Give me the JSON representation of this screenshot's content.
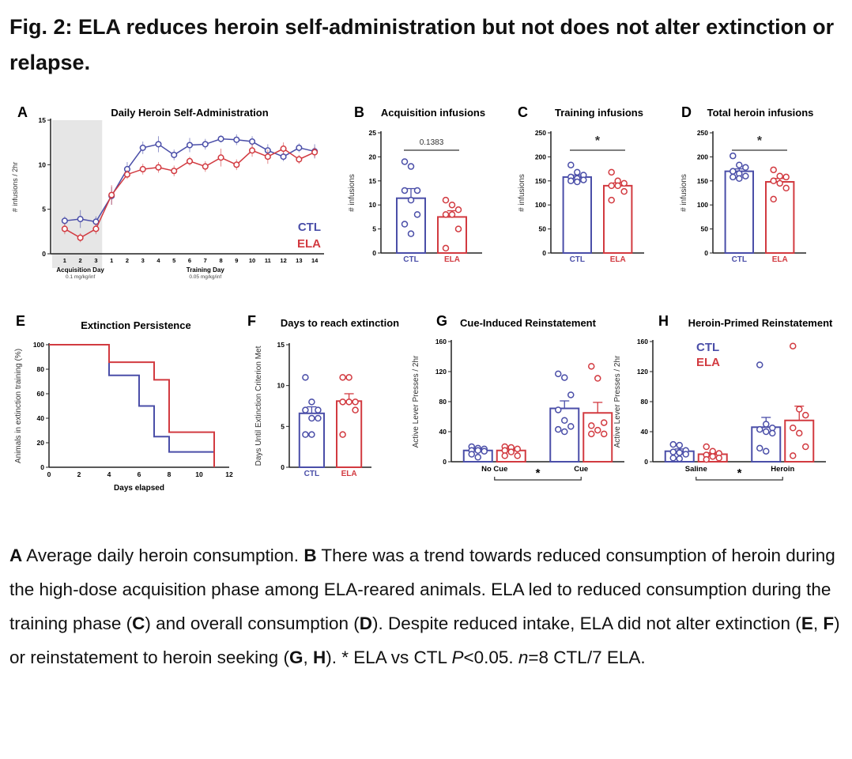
{
  "title": "Fig. 2: ELA reduces heroin self-administration but not does not alter extinction or relapse.",
  "colors": {
    "CTL": "#4a4ea8",
    "ELA": "#d23a40",
    "axis": "#222222"
  },
  "legend": {
    "ctl": "CTL",
    "ela": "ELA"
  },
  "caption": [
    {
      "b": true,
      "t": "A"
    },
    {
      "t": " Average daily heroin consumption. "
    },
    {
      "b": true,
      "t": "B"
    },
    {
      "t": " There was a trend towards reduced consumption of heroin during the high-dose acquisition phase among ELA-reared animals. ELA led to reduced consumption during the training phase ("
    },
    {
      "b": true,
      "t": "C"
    },
    {
      "t": ") and overall consumption ("
    },
    {
      "b": true,
      "t": "D"
    },
    {
      "t": "). Despite reduced intake, ELA did not alter extinction ("
    },
    {
      "b": true,
      "t": "E"
    },
    {
      "t": ", "
    },
    {
      "b": true,
      "t": "F"
    },
    {
      "t": ") or reinstatement to heroin seeking ("
    },
    {
      "b": true,
      "t": "G"
    },
    {
      "t": ", "
    },
    {
      "b": true,
      "t": "H"
    },
    {
      "t": "). * ELA vs CTL "
    },
    {
      "i": true,
      "t": "P"
    },
    {
      "t": "<0.05. "
    },
    {
      "i": true,
      "t": "n"
    },
    {
      "t": "=8 CTL/7 ELA."
    }
  ],
  "chart_data": [
    {
      "id": "A",
      "letter": "A",
      "type": "line",
      "title": "Daily Heroin Self-Administration",
      "ylabel": "# infusions / 2hr",
      "ylim": [
        0,
        15
      ],
      "yticks": [
        0,
        5,
        10,
        15
      ],
      "categories": [
        "1",
        "2",
        "3",
        "1",
        "2",
        "3",
        "4",
        "5",
        "6",
        "7",
        "8",
        "9",
        "10",
        "11",
        "12",
        "13",
        "14"
      ],
      "xgroups": [
        {
          "label": "Acquisition Day",
          "sub": "0.1 mg/kg/inf",
          "shaded": true
        },
        {
          "label": "Training Day",
          "sub": "0.05 mg/kg/inf"
        }
      ],
      "series": [
        {
          "name": "CTL",
          "values": [
            3.7,
            3.9,
            3.6,
            6.5,
            9.5,
            11.9,
            12.3,
            11.1,
            12.2,
            12.3,
            12.9,
            12.8,
            12.6,
            11.6,
            10.9,
            11.9,
            11.5
          ],
          "sem": [
            0.5,
            1,
            0.6,
            1,
            0.8,
            0.7,
            0.9,
            0.6,
            0.8,
            0.6,
            0.4,
            0.6,
            0.6,
            0.7,
            0.5,
            0.5,
            0.8
          ]
        },
        {
          "name": "ELA",
          "values": [
            2.8,
            1.8,
            2.8,
            6.6,
            8.9,
            9.5,
            9.7,
            9.3,
            10.4,
            9.8,
            10.8,
            10.0,
            11.6,
            10.9,
            11.8,
            10.6,
            11.4
          ],
          "sem": [
            0.6,
            0.5,
            0.6,
            1.1,
            0.5,
            0.6,
            0.6,
            0.6,
            0.5,
            0.6,
            1,
            0.6,
            0.7,
            0.8,
            0.7,
            0.5,
            0.6
          ]
        }
      ]
    },
    {
      "id": "B",
      "letter": "B",
      "type": "bar",
      "title": "Acquisition infusions",
      "ylabel": "# infusions",
      "ylim": [
        0,
        25
      ],
      "yticks": [
        0,
        5,
        10,
        15,
        20,
        25
      ],
      "annotation": "0.1383",
      "groups": [
        {
          "label": "",
          "bars": [
            {
              "name": "CTL",
              "value": 11.4,
              "sem": 2,
              "points": [
                19,
                18,
                13,
                13,
                11,
                8,
                6,
                4
              ]
            },
            {
              "name": "ELA",
              "value": 7.5,
              "sem": 1.3,
              "points": [
                11,
                10,
                9,
                8,
                8,
                5,
                1
              ]
            }
          ]
        }
      ]
    },
    {
      "id": "C",
      "letter": "C",
      "type": "bar",
      "title": "Training infusions",
      "ylabel": "# infusions",
      "ylim": [
        0,
        250
      ],
      "yticks": [
        0,
        50,
        100,
        150,
        200,
        250
      ],
      "annotation": "*",
      "groups": [
        {
          "label": "",
          "bars": [
            {
              "name": "CTL",
              "value": 158,
              "sem": 4,
              "points": [
                183,
                168,
                162,
                158,
                155,
                152,
                150,
                148
              ]
            },
            {
              "name": "ELA",
              "value": 140,
              "sem": 6,
              "points": [
                168,
                150,
                145,
                140,
                140,
                128,
                110
              ]
            }
          ]
        }
      ]
    },
    {
      "id": "D",
      "letter": "D",
      "type": "bar",
      "title": "Total heroin infusions",
      "ylabel": "# infusions",
      "ylim": [
        0,
        250
      ],
      "yticks": [
        0,
        50,
        100,
        150,
        200,
        250
      ],
      "annotation": "*",
      "groups": [
        {
          "label": "",
          "bars": [
            {
              "name": "CTL",
              "value": 170,
              "sem": 5,
              "points": [
                202,
                183,
                178,
                170,
                165,
                160,
                158,
                155
              ]
            },
            {
              "name": "ELA",
              "value": 148,
              "sem": 7,
              "points": [
                173,
                160,
                158,
                150,
                145,
                135,
                112
              ]
            }
          ]
        }
      ]
    },
    {
      "id": "E",
      "letter": "E",
      "type": "line",
      "step": true,
      "title": "Extinction Persistence",
      "ylabel": "Animals in extinction training (%)",
      "xlabel": "Days elapsed",
      "xlim": [
        0,
        12
      ],
      "xticks": [
        0,
        2,
        4,
        6,
        8,
        10,
        12
      ],
      "ylim": [
        0,
        100
      ],
      "yticks": [
        0,
        20,
        40,
        60,
        80,
        100
      ],
      "series": [
        {
          "name": "CTL",
          "x": [
            0,
            4,
            6,
            7,
            8,
            11
          ],
          "y": [
            100,
            75,
            50,
            25,
            12.5,
            0
          ]
        },
        {
          "name": "ELA",
          "x": [
            0,
            4,
            7,
            8,
            11
          ],
          "y": [
            100,
            85.7,
            71.4,
            28.6,
            14.3
          ]
        }
      ]
    },
    {
      "id": "F",
      "letter": "F",
      "type": "bar",
      "title": "Days to reach extinction",
      "ylabel": "Days Until Extinction Criterion Met",
      "ylim": [
        0,
        15
      ],
      "yticks": [
        0,
        5,
        10,
        15
      ],
      "groups": [
        {
          "label": "",
          "bars": [
            {
              "name": "CTL",
              "value": 6.6,
              "sem": 0.8,
              "points": [
                11,
                8,
                7,
                7,
                6,
                6,
                4,
                4
              ]
            },
            {
              "name": "ELA",
              "value": 8.1,
              "sem": 0.9,
              "points": [
                11,
                11,
                8,
                8,
                8,
                7,
                4
              ]
            }
          ]
        }
      ]
    },
    {
      "id": "G",
      "letter": "G",
      "type": "bar",
      "title": "Cue-Induced Reinstatement",
      "ylabel": "Active Lever Presses / 2hr",
      "ylim": [
        0,
        160
      ],
      "yticks": [
        0,
        40,
        80,
        120,
        160
      ],
      "annotation": "*",
      "groups": [
        {
          "label": "No Cue",
          "bars": [
            {
              "name": "CTL",
              "value": 15,
              "sem": 2,
              "points": [
                20,
                18,
                17,
                15,
                15,
                14,
                10,
                6
              ]
            },
            {
              "name": "ELA",
              "value": 15,
              "sem": 2,
              "points": [
                20,
                19,
                17,
                15,
                13,
                8,
                8
              ]
            }
          ]
        },
        {
          "label": "Cue",
          "bars": [
            {
              "name": "CTL",
              "value": 71,
              "sem": 10,
              "points": [
                117,
                112,
                89,
                69,
                55,
                47,
                43,
                40
              ]
            },
            {
              "name": "ELA",
              "value": 65,
              "sem": 14,
              "points": [
                127,
                111,
                52,
                48,
                42,
                37,
                37
              ]
            }
          ]
        }
      ]
    },
    {
      "id": "H",
      "letter": "H",
      "type": "bar",
      "title": "Heroin-Primed Reinstatement",
      "ylabel": "Active Lever Presses / 2hr",
      "ylim": [
        0,
        160
      ],
      "yticks": [
        0,
        40,
        80,
        120,
        160
      ],
      "annotation": "*",
      "legend": "top-left",
      "groups": [
        {
          "label": "Saline",
          "bars": [
            {
              "name": "CTL",
              "value": 14,
              "sem": 3,
              "points": [
                23,
                22,
                15,
                13,
                12,
                10,
                5,
                4
              ]
            },
            {
              "name": "ELA",
              "value": 10,
              "sem": 2,
              "points": [
                20,
                14,
                11,
                9,
                7,
                5,
                3
              ]
            }
          ]
        },
        {
          "label": "Heroin",
          "bars": [
            {
              "name": "CTL",
              "value": 46,
              "sem": 13,
              "points": [
                129,
                50,
                45,
                43,
                40,
                38,
                18,
                14
              ]
            },
            {
              "name": "ELA",
              "value": 55,
              "sem": 19,
              "points": [
                154,
                70,
                62,
                45,
                38,
                20,
                8
              ]
            }
          ]
        }
      ]
    }
  ]
}
